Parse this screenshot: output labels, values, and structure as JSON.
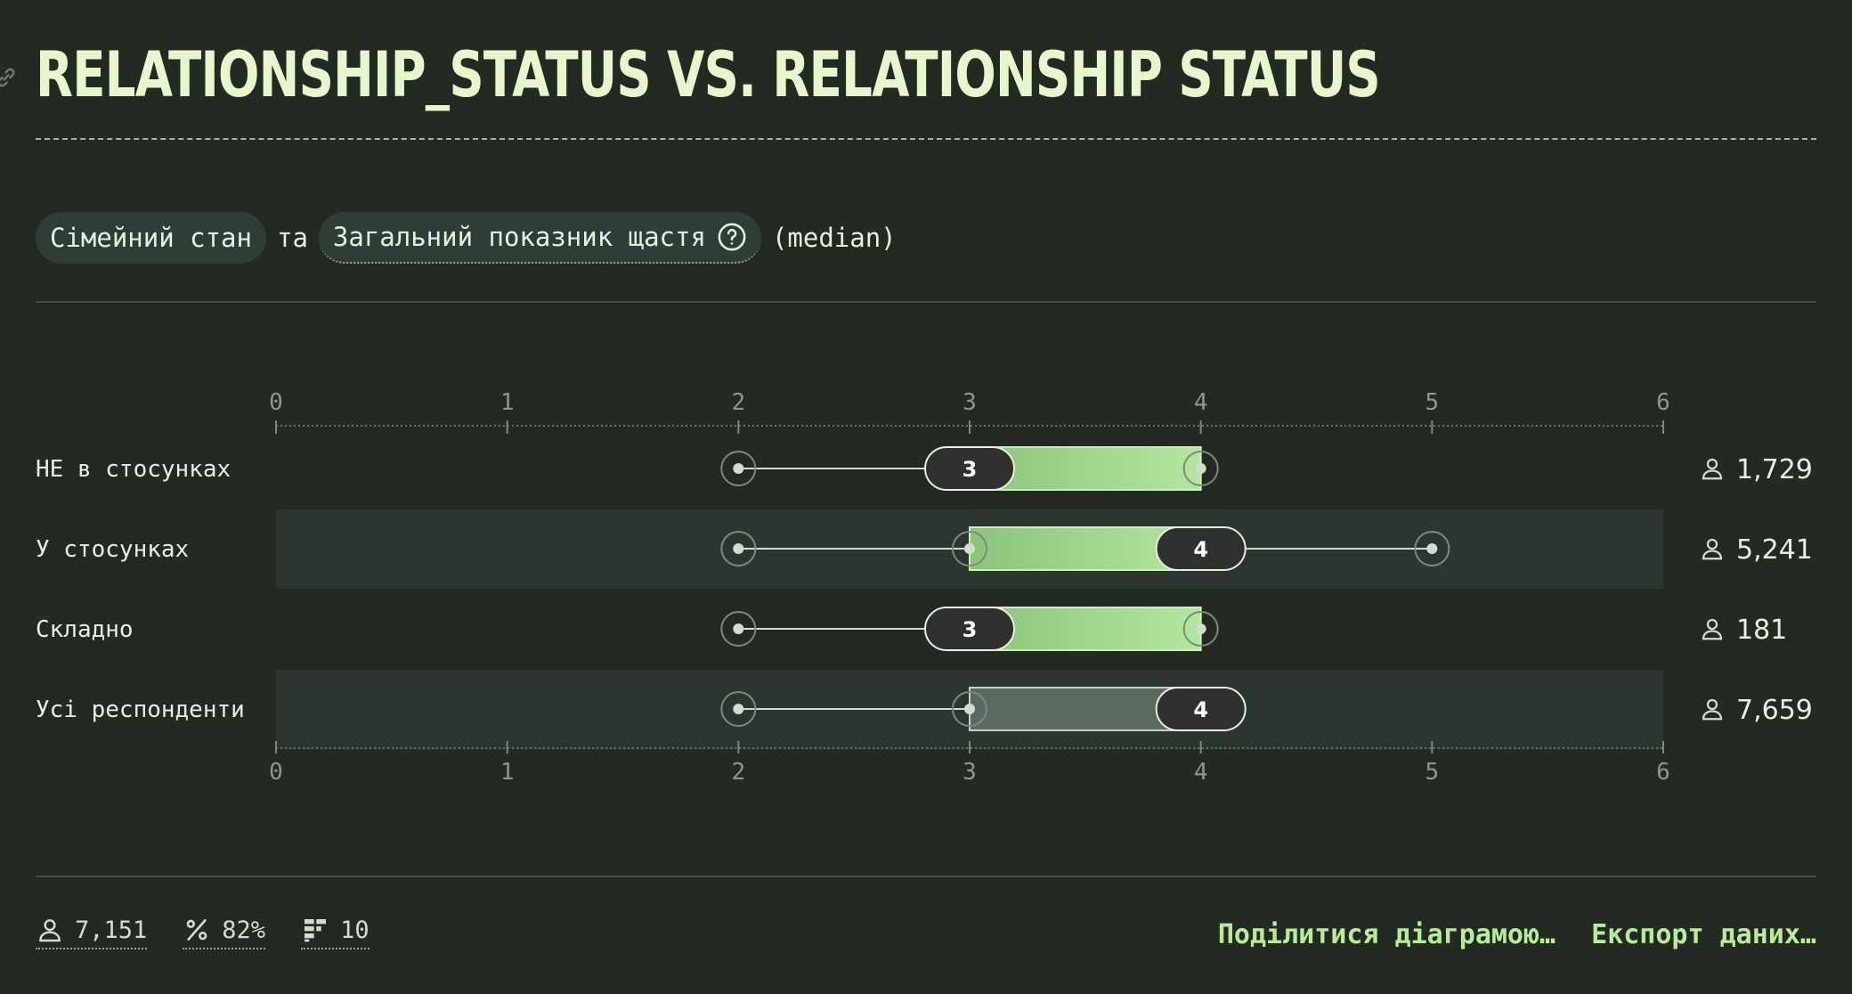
{
  "title": "RELATIONSHIP_STATUS VS. RELATIONSHIP STATUS",
  "filter": {
    "group_by": "Сімейний стан",
    "connector": "та",
    "measure": "Загальний показник щастя",
    "aggregation": "(median)"
  },
  "colors": {
    "background": "#232a22",
    "row_band": "#2c3630",
    "bar_green_start": "#8bc47a",
    "bar_green_end": "#b4e6a0",
    "bar_gray": "#5b6a60",
    "label_pill": "#2e312e",
    "accent": "#b9ec98"
  },
  "icons": {
    "link": "link-icon",
    "help": "help-icon",
    "respondents": "person-icon",
    "percent": "percent-icon",
    "categories": "categories-icon"
  },
  "chart_data": {
    "type": "box",
    "x_axis": {
      "min": 0,
      "max": 6,
      "ticks": [
        "0",
        "1",
        "2",
        "3",
        "4",
        "5",
        "6"
      ]
    },
    "rows": [
      {
        "label": "НЕ в стосунках",
        "whisker_low": 2,
        "q1": 3,
        "median": 3,
        "q3": 4,
        "whisker_high": 4,
        "median_label": "3",
        "count": "1,729",
        "highlight": false,
        "style": "green"
      },
      {
        "label": "У стосунках",
        "whisker_low": 2,
        "q1": 3,
        "median": 4,
        "q3": 4,
        "whisker_high": 5,
        "median_label": "4",
        "count": "5,241",
        "highlight": true,
        "style": "green"
      },
      {
        "label": "Складно",
        "whisker_low": 2,
        "q1": 3,
        "median": 3,
        "q3": 4,
        "whisker_high": 4,
        "median_label": "3",
        "count": "181",
        "highlight": false,
        "style": "green"
      },
      {
        "label": "Усі респонденти",
        "whisker_low": 2,
        "q1": 3,
        "median": 4,
        "q3": 4,
        "whisker_high": 4,
        "median_label": "4",
        "count": "7,659",
        "highlight": true,
        "style": "gray"
      }
    ]
  },
  "footer": {
    "respondents": "7,151",
    "percent": "82%",
    "categories": "10",
    "share_label": "Поділитися діаграмою…",
    "export_label": "Експорт даних…"
  }
}
